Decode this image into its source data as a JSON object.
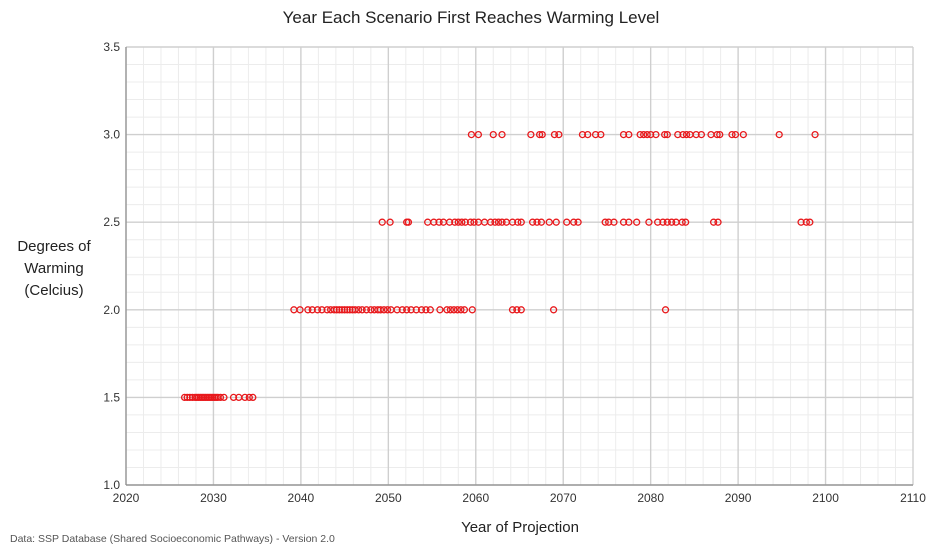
{
  "chart_data": {
    "type": "scatter",
    "title": "Year Each Scenario First Reaches Warming Level",
    "xlabel": "Year of Projection",
    "ylabel_lines": [
      "Degrees of",
      "Warming",
      "(Celcius)"
    ],
    "xlim": [
      2020,
      2110
    ],
    "ylim": [
      1.0,
      3.5
    ],
    "x_ticks": [
      "2020",
      "2030",
      "2040",
      "2050",
      "2060",
      "2070",
      "2080",
      "2090",
      "2100",
      "2110"
    ],
    "y_ticks": [
      "1.0",
      "1.5",
      "2.0",
      "2.5",
      "3.0",
      "3.5"
    ],
    "grid": true,
    "marker": "open-circle",
    "marker_color": "#e8191c",
    "series": [
      {
        "y": 1.5,
        "x": [
          2026.7,
          2027.0,
          2027.3,
          2027.6,
          2027.9,
          2028.1,
          2028.3,
          2028.5,
          2028.7,
          2028.9,
          2029.1,
          2029.3,
          2029.5,
          2029.7,
          2029.9,
          2030.1,
          2030.3,
          2030.5,
          2030.8,
          2031.2,
          2032.3,
          2032.9,
          2033.6,
          2034.1,
          2034.5
        ]
      },
      {
        "y": 2.0,
        "x": [
          2039.2,
          2039.9,
          2040.8,
          2041.3,
          2041.9,
          2042.4,
          2043.0,
          2043.4,
          2043.8,
          2044.1,
          2044.4,
          2044.7,
          2045.0,
          2045.3,
          2045.6,
          2045.9,
          2046.2,
          2046.6,
          2047.0,
          2047.5,
          2048.0,
          2048.4,
          2048.8,
          2049.1,
          2049.5,
          2049.9,
          2050.3,
          2051.0,
          2051.6,
          2052.1,
          2052.6,
          2053.2,
          2053.8,
          2054.3,
          2054.8,
          2055.9,
          2056.7,
          2057.1,
          2057.5,
          2057.9,
          2058.3,
          2058.7,
          2059.6,
          2064.2,
          2064.7,
          2065.2,
          2068.9,
          2081.7
        ]
      },
      {
        "y": 2.5,
        "x": [
          2049.3,
          2050.2,
          2052.1,
          2052.3,
          2054.5,
          2055.2,
          2055.8,
          2056.3,
          2057.0,
          2057.6,
          2058.0,
          2058.4,
          2058.8,
          2059.4,
          2059.8,
          2060.3,
          2061.0,
          2061.7,
          2062.2,
          2062.6,
          2063.0,
          2063.5,
          2064.2,
          2064.8,
          2065.2,
          2066.5,
          2067.0,
          2067.5,
          2068.4,
          2069.2,
          2070.4,
          2071.2,
          2071.7,
          2074.8,
          2075.2,
          2075.8,
          2076.9,
          2077.5,
          2078.4,
          2079.8,
          2080.8,
          2081.4,
          2081.9,
          2082.4,
          2082.9,
          2083.6,
          2084.0,
          2087.2,
          2087.7,
          2097.2,
          2097.8,
          2098.2
        ]
      },
      {
        "y": 3.0,
        "x": [
          2059.5,
          2060.3,
          2062.0,
          2063.0,
          2066.3,
          2067.3,
          2067.6,
          2069.0,
          2069.5,
          2072.2,
          2072.8,
          2073.7,
          2074.3,
          2076.9,
          2077.5,
          2078.8,
          2079.2,
          2079.6,
          2080.0,
          2080.6,
          2081.6,
          2081.9,
          2083.1,
          2083.7,
          2084.1,
          2084.5,
          2085.2,
          2085.8,
          2086.9,
          2087.6,
          2087.9,
          2089.3,
          2089.7,
          2090.6,
          2094.7,
          2098.8
        ]
      }
    ],
    "source_note": "Data: SSP Database  (Shared  Socioeconomic Pathways) - Version 2.0"
  }
}
